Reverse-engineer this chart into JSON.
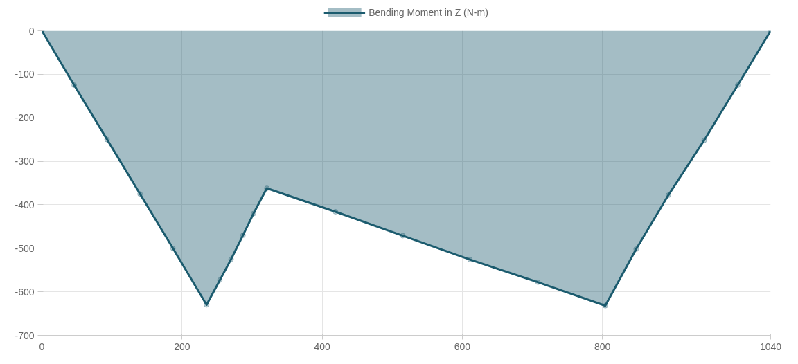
{
  "chart_data": {
    "type": "area",
    "x": [
      0,
      46,
      93,
      140,
      187,
      235,
      254,
      270,
      287,
      302,
      321,
      419,
      515,
      611,
      708,
      804,
      848,
      894,
      945,
      993,
      1040
    ],
    "series": [
      {
        "name": "Bending Moment in Z (N-m)",
        "color": "#1b5b6e",
        "values": [
          0,
          -125,
          -250,
          -375,
          -500,
          -630,
          -573,
          -525,
          -470,
          -420,
          -362,
          -416,
          -471,
          -526,
          -578,
          -632,
          -502,
          -378,
          -252,
          -125,
          0
        ]
      }
    ],
    "xlim": [
      0,
      1040
    ],
    "xticks": [
      0,
      200,
      400,
      600,
      800,
      1040
    ],
    "ylim": [
      -700,
      0
    ],
    "yticks": [
      0,
      -100,
      -200,
      -300,
      -400,
      -500,
      -600,
      -700
    ],
    "grid": true,
    "legend": "top",
    "marker": "circle"
  }
}
